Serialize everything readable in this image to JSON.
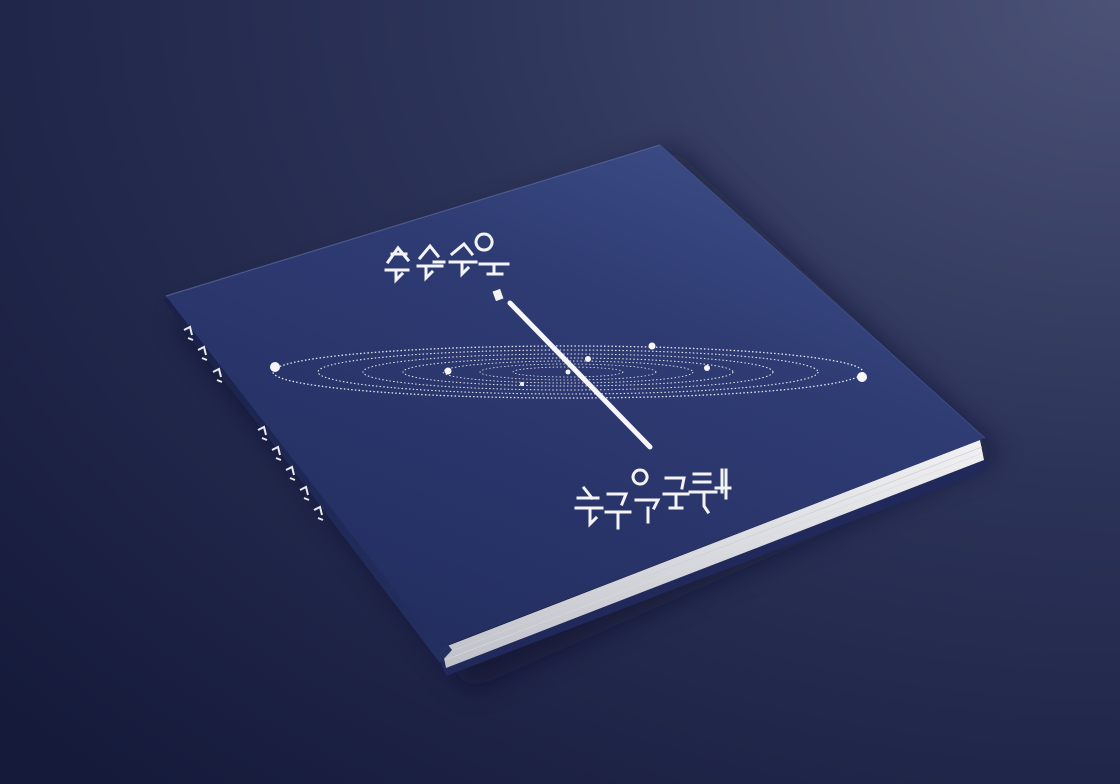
{
  "scene": {
    "description_kind": "photo-mockup",
    "colors": {
      "background_light": "#4a5174",
      "background_dark": "#141a3a",
      "cover_main": "#2a3566",
      "cover_light": "#3f4b7e",
      "spine": "#1f2750",
      "pages": "#e8e8ea",
      "ink": "#f4f4f6"
    }
  },
  "book": {
    "cover_title_top": "",
    "cover_title_bottom": "",
    "spine_title": ""
  },
  "illustration": {
    "type": "orbit-rings",
    "ring_count": 7,
    "planet_count": 8
  }
}
